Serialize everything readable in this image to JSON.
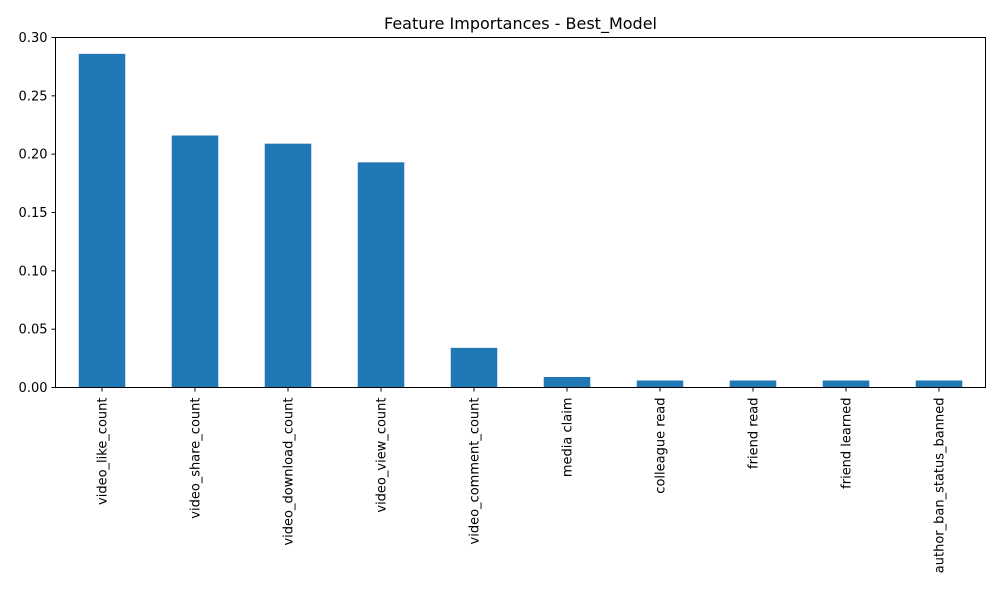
{
  "chart_data": {
    "type": "bar",
    "title": "Feature Importances - Best_Model",
    "xlabel": "",
    "ylabel": "",
    "categories": [
      "video_like_count",
      "video_share_count",
      "video_download_count",
      "video_view_count",
      "video_comment_count",
      "media claim",
      "colleague read",
      "friend read",
      "friend learned",
      "author_ban_status_banned"
    ],
    "values": [
      0.286,
      0.216,
      0.209,
      0.193,
      0.034,
      0.009,
      0.006,
      0.006,
      0.006,
      0.006
    ],
    "ylim": [
      0,
      0.3
    ],
    "yticks": [
      "0.00",
      "0.05",
      "0.10",
      "0.15",
      "0.20",
      "0.25",
      "0.30"
    ],
    "grid": false,
    "legend": "none",
    "bar_color": "#1f77b4"
  }
}
